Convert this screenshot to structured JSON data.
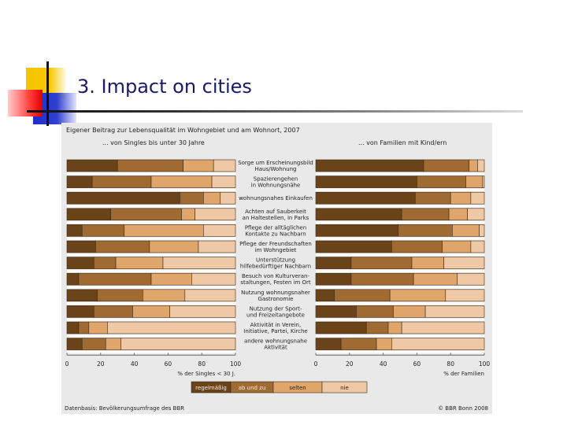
{
  "slide": {
    "title": "3. Impact on cities"
  },
  "chart_data": {
    "type": "bar",
    "orientation": "horizontal-stacked-100",
    "title": "Eigener Beitrag zur Lebensqualität im Wohngebiet und am Wohnort, 2007",
    "panels": [
      {
        "subtitle": "... von Singles bis unter 30 Jahre",
        "xlabel": "% der Singles < 30 J.",
        "xlim": [
          0,
          100
        ],
        "xticks": [
          "0",
          "20",
          "40",
          "60",
          "80",
          "100"
        ],
        "series": [
          {
            "name": "regelmäßig",
            "values": [
              30,
              15,
              67,
              26,
              9,
              17,
              16,
              7,
              18,
              16,
              7,
              9
            ]
          },
          {
            "name": "ab und zu",
            "values": [
              39,
              35,
              14,
              42,
              25,
              32,
              13,
              43,
              27,
              23,
              6,
              14
            ]
          },
          {
            "name": "selten",
            "values": [
              18,
              36,
              10,
              8,
              47,
              29,
              28,
              24,
              25,
              22,
              11,
              9
            ]
          },
          {
            "name": "nie",
            "values": [
              13,
              14,
              9,
              24,
              19,
              22,
              43,
              26,
              30,
              39,
              76,
              68
            ]
          }
        ]
      },
      {
        "subtitle": "... von Familien mit Kind/ern",
        "xlabel": "% der Familien",
        "xlim": [
          0,
          100
        ],
        "xticks": [
          "0",
          "20",
          "40",
          "60",
          "80",
          "100"
        ],
        "series": [
          {
            "name": "regelmäßig",
            "values": [
              64,
              60,
              59,
              51,
              49,
              45,
              21,
              21,
              11,
              24,
              30,
              15
            ]
          },
          {
            "name": "ab und zu",
            "values": [
              27,
              29,
              21,
              28,
              32,
              30,
              36,
              37,
              33,
              22,
              13,
              21
            ]
          },
          {
            "name": "selten",
            "values": [
              5,
              10,
              12,
              11,
              16,
              17,
              19,
              26,
              33,
              19,
              8,
              9
            ]
          },
          {
            "name": "nie",
            "values": [
              4,
              1,
              8,
              10,
              3,
              8,
              24,
              16,
              23,
              35,
              49,
              55
            ]
          }
        ]
      }
    ],
    "categories": [
      [
        "Sorge um Erscheinungsbild",
        "Haus/Wohnung"
      ],
      [
        "Spazierengehen",
        "in Wohnungsnähe"
      ],
      [
        "wohnungsnahes Einkaufen"
      ],
      [
        "Achten auf Sauberkeit",
        "an Haltestellen, in Parks"
      ],
      [
        "Pflege der alltäglichen",
        "Kontakte zu Nachbarn"
      ],
      [
        "Pflege der Freundschaften",
        "im Wohngebiet"
      ],
      [
        "Unterstützung",
        "hilfebedürftiger Nachbarn"
      ],
      [
        "Besuch von Kulturveran-",
        "staltungen, Festen im Ort"
      ],
      [
        "Nutzung wohnungsnaher",
        "Gastronomie"
      ],
      [
        "Nutzung der Sport-",
        "und Freizeitangebote"
      ],
      [
        "Aktivität in Verein,",
        "Initiative, Partei, Kirche"
      ],
      [
        "andere wohnungsnahe",
        "Aktivität"
      ]
    ],
    "legend": {
      "position": "bottom-center",
      "items": [
        {
          "label": "regelmäßig",
          "color": "#6b4318"
        },
        {
          "label": "ab und zu",
          "color": "#a06a33"
        },
        {
          "label": "selten",
          "color": "#dfa56b"
        },
        {
          "label": "nie",
          "color": "#efc9a6"
        }
      ]
    },
    "source": "Datenbasis: Bevölkerungsumfrage des BBR",
    "copyright": "© BBR Bonn 2008"
  }
}
